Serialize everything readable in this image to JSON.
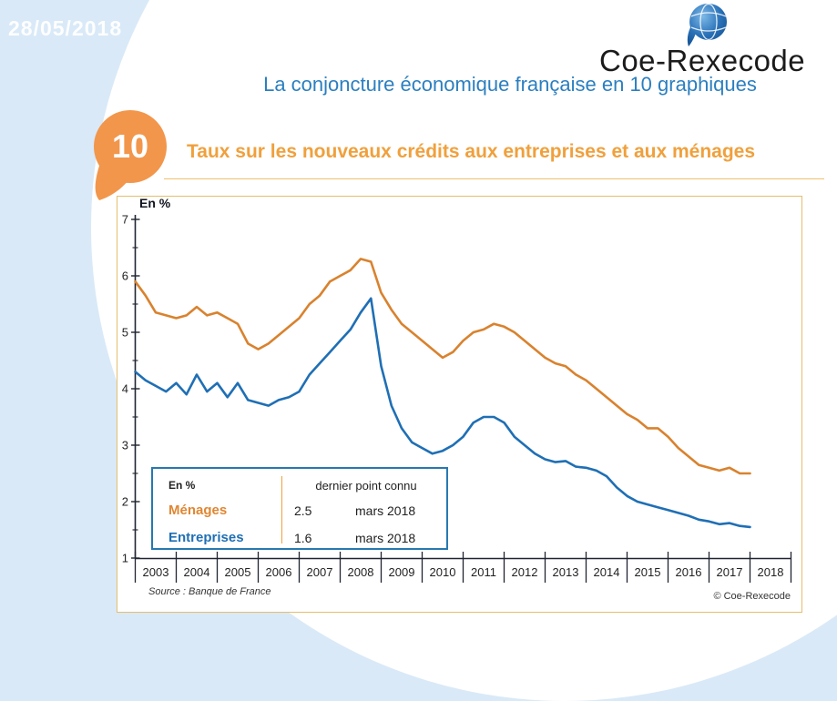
{
  "page": {
    "date": "28/05/2018"
  },
  "logo": {
    "text": "Coe-Rexecode"
  },
  "header": {
    "title": "La conjoncture économique française en 10 graphiques"
  },
  "section": {
    "number": "10",
    "title": "Taux sur les nouveaux crédits aux entreprises et aux ménages"
  },
  "panel": {
    "source": "Source : Banque de France",
    "copyright": "© Coe-Rexecode"
  },
  "legend": {
    "unit": "En %",
    "header": "dernier point connu",
    "rows": [
      {
        "label": "Ménages",
        "value": "2.5",
        "date": "mars 2018"
      },
      {
        "label": "Entreprises",
        "value": "1.6",
        "date": "mars 2018"
      }
    ]
  },
  "colors": {
    "background": "#D9E9F7",
    "heading_blue": "#2B7FC0",
    "title_orange": "#F0A03C",
    "badge_orange": "#F2964B",
    "rule_gold": "#F0C070",
    "panel_border": "#E5BE6F",
    "legend_border": "#2779B0",
    "menages": "#E08632",
    "entreprises": "#1F6FB5"
  },
  "chart_data": {
    "type": "line",
    "title": "Taux sur les nouveaux crédits aux entreprises et aux ménages",
    "axis_label": "En %",
    "xlabel": "",
    "ylabel": "En %",
    "ylim": [
      1,
      7
    ],
    "yticks": [
      1,
      2,
      3,
      4,
      5,
      6,
      7
    ],
    "x_labels": [
      "2003",
      "2004",
      "2005",
      "2006",
      "2007",
      "2008",
      "2009",
      "2010",
      "2011",
      "2012",
      "2013",
      "2014",
      "2015",
      "2016",
      "2017",
      "2018"
    ],
    "x_start": 2003,
    "x_step": 0.25,
    "grid": false,
    "legend_position": "bottom-left box",
    "series": [
      {
        "name": "Ménages",
        "color": "#D9822E",
        "last_point": {
          "value": 2.5,
          "date": "mars 2018"
        },
        "values": [
          5.9,
          5.65,
          5.35,
          5.3,
          5.25,
          5.3,
          5.45,
          5.3,
          5.35,
          5.25,
          5.15,
          4.8,
          4.7,
          4.8,
          4.95,
          5.1,
          5.25,
          5.5,
          5.65,
          5.9,
          6.0,
          6.1,
          6.3,
          6.25,
          5.7,
          5.4,
          5.15,
          5.0,
          4.85,
          4.7,
          4.55,
          4.65,
          4.85,
          5.0,
          5.05,
          5.15,
          5.1,
          5.0,
          4.85,
          4.7,
          4.55,
          4.45,
          4.4,
          4.25,
          4.15,
          4.0,
          3.85,
          3.7,
          3.55,
          3.45,
          3.3,
          3.3,
          3.15,
          2.95,
          2.8,
          2.65,
          2.6,
          2.55,
          2.6,
          2.5,
          2.5
        ]
      },
      {
        "name": "Entreprises",
        "color": "#1F6FB5",
        "last_point": {
          "value": 1.6,
          "date": "mars 2018"
        },
        "values": [
          4.3,
          4.15,
          4.05,
          3.95,
          4.1,
          3.9,
          4.25,
          3.95,
          4.1,
          3.85,
          4.1,
          3.8,
          3.75,
          3.7,
          3.8,
          3.85,
          3.95,
          4.25,
          4.45,
          4.65,
          4.85,
          5.05,
          5.35,
          5.6,
          4.4,
          3.7,
          3.3,
          3.05,
          2.95,
          2.85,
          2.9,
          3.0,
          3.15,
          3.4,
          3.5,
          3.5,
          3.4,
          3.15,
          3.0,
          2.85,
          2.75,
          2.7,
          2.72,
          2.62,
          2.6,
          2.55,
          2.45,
          2.25,
          2.1,
          2.0,
          1.95,
          1.9,
          1.85,
          1.8,
          1.75,
          1.68,
          1.65,
          1.6,
          1.62,
          1.57,
          1.55
        ]
      }
    ]
  }
}
